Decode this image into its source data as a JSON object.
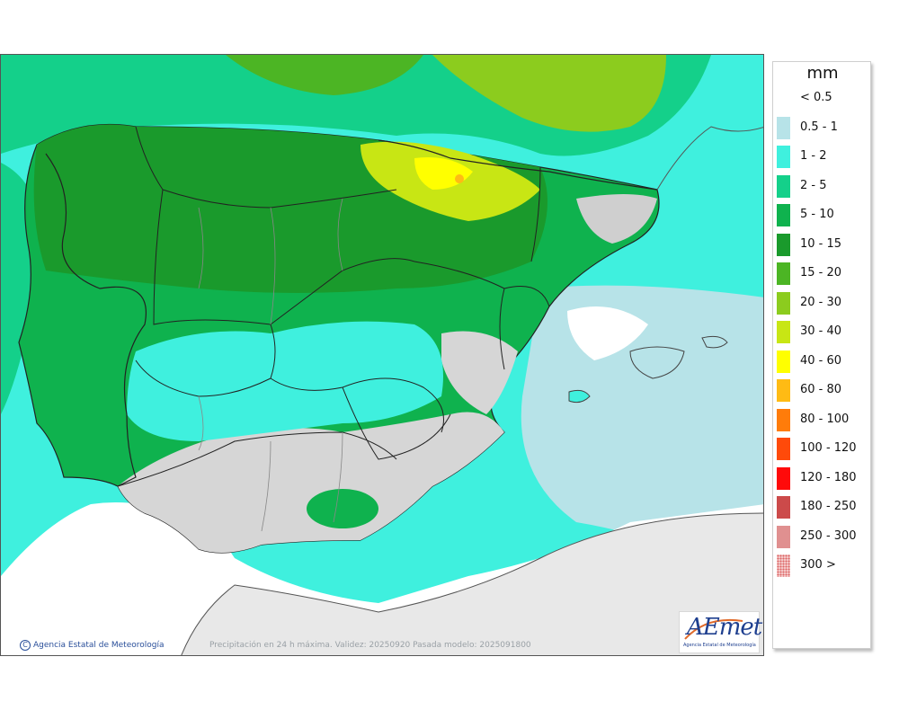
{
  "legend": {
    "unit": "mm",
    "items": [
      {
        "label": "< 0.5",
        "color": "#ffffff"
      },
      {
        "label": "0.5 - 1",
        "color": "#b7e3e8"
      },
      {
        "label": "1 - 2",
        "color": "#3ff0de"
      },
      {
        "label": "2 - 5",
        "color": "#14d08a"
      },
      {
        "label": "5 - 10",
        "color": "#0fb24e"
      },
      {
        "label": "10 - 15",
        "color": "#1a9a2c"
      },
      {
        "label": "15 - 20",
        "color": "#4cb524"
      },
      {
        "label": "20 - 30",
        "color": "#8ccc1e"
      },
      {
        "label": "30 - 40",
        "color": "#c8e614"
      },
      {
        "label": "40 - 60",
        "color": "#ffff00"
      },
      {
        "label": "60 - 80",
        "color": "#ffbb14"
      },
      {
        "label": "80 - 100",
        "color": "#ff7c0a"
      },
      {
        "label": "100 - 120",
        "color": "#ff4a0a"
      },
      {
        "label": "120 - 180",
        "color": "#ff0a0a"
      },
      {
        "label": "180 - 250",
        "color": "#cc4a4a"
      },
      {
        "label": "250 - 300",
        "color": "#e09090"
      },
      {
        "label": "300 >",
        "color": "#f4c8c8"
      }
    ]
  },
  "footer": {
    "credit_symbol": "C",
    "credit": "Agencia Estatal de Meteorología",
    "caption": "Precipitación en 24 h máxima. Validez: 20250920 Pasada modelo: 2025091800"
  },
  "logo": {
    "word": "AEmet",
    "subtitle": "Agencia Estatal de Meteorología"
  },
  "colors": {
    "sea_rain_light": "#b7e3e8",
    "land_dry": "#dcdcdc",
    "border": "#222222",
    "region_border": "#888888",
    "accent": "#1e3f8f"
  }
}
